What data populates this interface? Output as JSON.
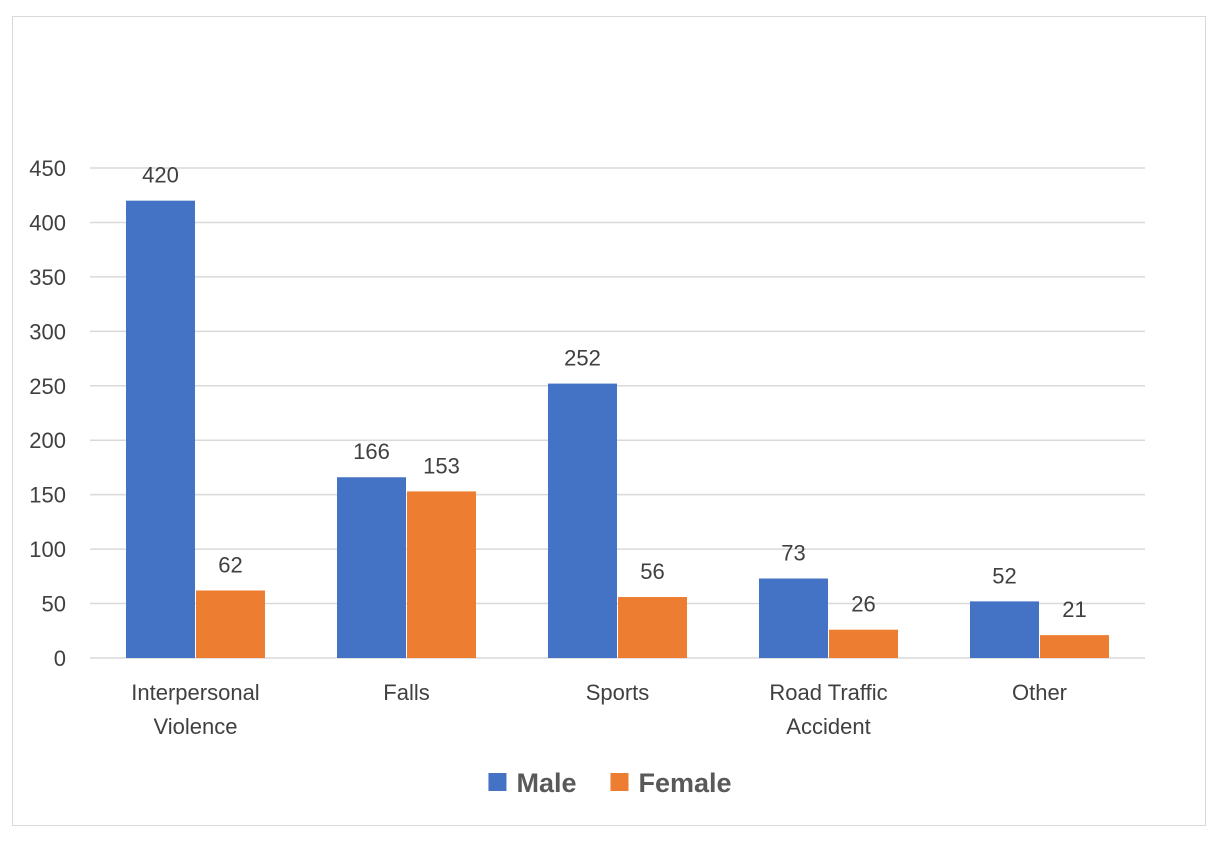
{
  "chart_data": {
    "type": "bar",
    "title": "",
    "xlabel": "",
    "ylabel": "",
    "categories": [
      [
        "Interpersonal",
        "Violence"
      ],
      [
        "Falls"
      ],
      [
        "Sports"
      ],
      [
        "Road Traffic",
        "Accident"
      ],
      [
        "Other"
      ]
    ],
    "series": [
      {
        "name": "Male",
        "color": "#4472c4",
        "values": [
          420,
          166,
          252,
          73,
          52
        ]
      },
      {
        "name": "Female",
        "color": "#ed7d31",
        "values": [
          62,
          153,
          56,
          26,
          21
        ]
      }
    ],
    "ylim": [
      0,
      450
    ],
    "yticks": [
      0,
      50,
      100,
      150,
      200,
      250,
      300,
      350,
      400,
      450
    ],
    "grid": true,
    "legend_position": "bottom",
    "colors": {
      "grid": "#d9d9d9",
      "axis": "#d9d9d9",
      "text": "#404040",
      "legend_text": "#595959"
    }
  }
}
